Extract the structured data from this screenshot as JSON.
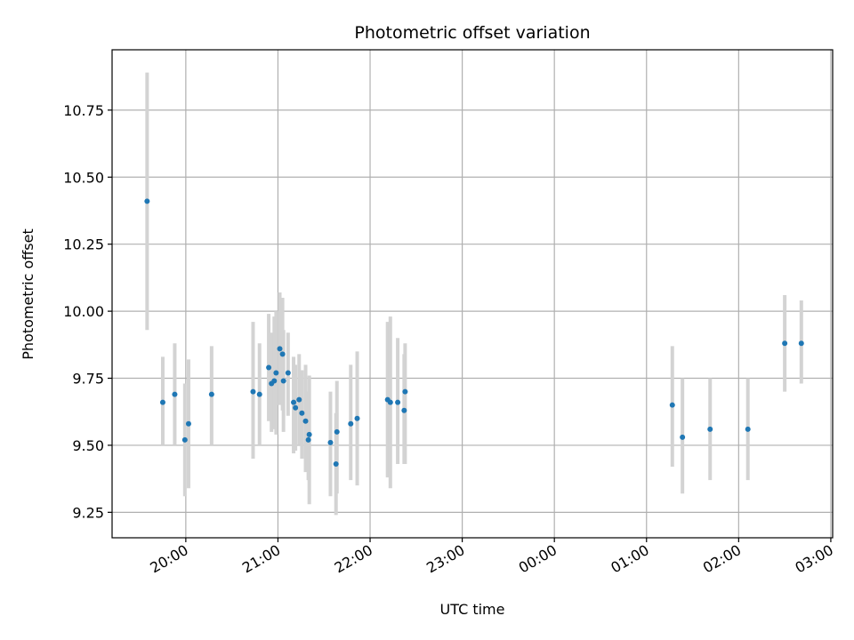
{
  "chart_data": {
    "type": "scatter",
    "title": "Photometric offset variation",
    "xlabel": "UTC time",
    "ylabel": "Photometric offset",
    "x_unit": "hours since 19:00 UTC",
    "xlim": [
      0.2,
      8.02
    ],
    "ylim": [
      9.155,
      10.975
    ],
    "grid": true,
    "colors": {
      "point": "#1f77b4",
      "errorbar": "#d3d3d3",
      "grid": "#b0b0b0"
    },
    "xticks": [
      {
        "value": 1,
        "label": "20:00"
      },
      {
        "value": 2,
        "label": "21:00"
      },
      {
        "value": 3,
        "label": "22:00"
      },
      {
        "value": 4,
        "label": "23:00"
      },
      {
        "value": 5,
        "label": "00:00"
      },
      {
        "value": 6,
        "label": "01:00"
      },
      {
        "value": 7,
        "label": "02:00"
      },
      {
        "value": 8,
        "label": "03:00"
      }
    ],
    "yticks": [
      {
        "value": 9.25,
        "label": "9.25"
      },
      {
        "value": 9.5,
        "label": "9.50"
      },
      {
        "value": 9.75,
        "label": "9.75"
      },
      {
        "value": 10.0,
        "label": "10.00"
      },
      {
        "value": 10.25,
        "label": "10.25"
      },
      {
        "value": 10.5,
        "label": "10.50"
      },
      {
        "value": 10.75,
        "label": "10.75"
      }
    ],
    "points": [
      {
        "x": 0.58,
        "y": 10.41,
        "lo": 9.93,
        "hi": 10.89
      },
      {
        "x": 0.75,
        "y": 9.66,
        "lo": 9.5,
        "hi": 9.83
      },
      {
        "x": 0.88,
        "y": 9.69,
        "lo": 9.5,
        "hi": 9.88
      },
      {
        "x": 0.99,
        "y": 9.52,
        "lo": 9.31,
        "hi": 9.73
      },
      {
        "x": 1.03,
        "y": 9.58,
        "lo": 9.34,
        "hi": 9.82
      },
      {
        "x": 1.28,
        "y": 9.69,
        "lo": 9.5,
        "hi": 9.87
      },
      {
        "x": 1.73,
        "y": 9.7,
        "lo": 9.45,
        "hi": 9.96
      },
      {
        "x": 1.8,
        "y": 9.69,
        "lo": 9.5,
        "hi": 9.88
      },
      {
        "x": 1.9,
        "y": 9.79,
        "lo": 9.59,
        "hi": 9.99
      },
      {
        "x": 1.93,
        "y": 9.73,
        "lo": 9.55,
        "hi": 9.92
      },
      {
        "x": 1.96,
        "y": 9.74,
        "lo": 9.56,
        "hi": 9.98
      },
      {
        "x": 1.98,
        "y": 9.77,
        "lo": 9.54,
        "hi": 10.0
      },
      {
        "x": 2.02,
        "y": 9.86,
        "lo": 9.65,
        "hi": 10.07
      },
      {
        "x": 2.05,
        "y": 9.84,
        "lo": 9.63,
        "hi": 10.05
      },
      {
        "x": 2.06,
        "y": 9.74,
        "lo": 9.55,
        "hi": 9.93
      },
      {
        "x": 2.11,
        "y": 9.77,
        "lo": 9.61,
        "hi": 9.92
      },
      {
        "x": 2.17,
        "y": 9.66,
        "lo": 9.47,
        "hi": 9.83
      },
      {
        "x": 2.19,
        "y": 9.64,
        "lo": 9.48,
        "hi": 9.8
      },
      {
        "x": 2.23,
        "y": 9.67,
        "lo": 9.5,
        "hi": 9.84
      },
      {
        "x": 2.26,
        "y": 9.62,
        "lo": 9.45,
        "hi": 9.78
      },
      {
        "x": 2.3,
        "y": 9.59,
        "lo": 9.4,
        "hi": 9.8
      },
      {
        "x": 2.33,
        "y": 9.52,
        "lo": 9.37,
        "hi": 9.7
      },
      {
        "x": 2.34,
        "y": 9.54,
        "lo": 9.28,
        "hi": 9.76
      },
      {
        "x": 2.57,
        "y": 9.51,
        "lo": 9.31,
        "hi": 9.7
      },
      {
        "x": 2.64,
        "y": 9.55,
        "lo": 9.32,
        "hi": 9.74
      },
      {
        "x": 2.63,
        "y": 9.43,
        "lo": 9.24,
        "hi": 9.62
      },
      {
        "x": 2.79,
        "y": 9.58,
        "lo": 9.37,
        "hi": 9.8
      },
      {
        "x": 2.86,
        "y": 9.6,
        "lo": 9.35,
        "hi": 9.85
      },
      {
        "x": 3.19,
        "y": 9.67,
        "lo": 9.38,
        "hi": 9.96
      },
      {
        "x": 3.22,
        "y": 9.66,
        "lo": 9.34,
        "hi": 9.98
      },
      {
        "x": 3.3,
        "y": 9.66,
        "lo": 9.43,
        "hi": 9.9
      },
      {
        "x": 3.37,
        "y": 9.63,
        "lo": 9.43,
        "hi": 9.84
      },
      {
        "x": 3.38,
        "y": 9.7,
        "lo": 9.43,
        "hi": 9.88
      },
      {
        "x": 6.28,
        "y": 9.65,
        "lo": 9.42,
        "hi": 9.87
      },
      {
        "x": 6.39,
        "y": 9.53,
        "lo": 9.32,
        "hi": 9.75
      },
      {
        "x": 6.69,
        "y": 9.56,
        "lo": 9.37,
        "hi": 9.75
      },
      {
        "x": 7.1,
        "y": 9.56,
        "lo": 9.37,
        "hi": 9.75
      },
      {
        "x": 7.5,
        "y": 9.88,
        "lo": 9.7,
        "hi": 10.06
      },
      {
        "x": 7.68,
        "y": 9.88,
        "lo": 9.73,
        "hi": 10.04
      }
    ]
  }
}
